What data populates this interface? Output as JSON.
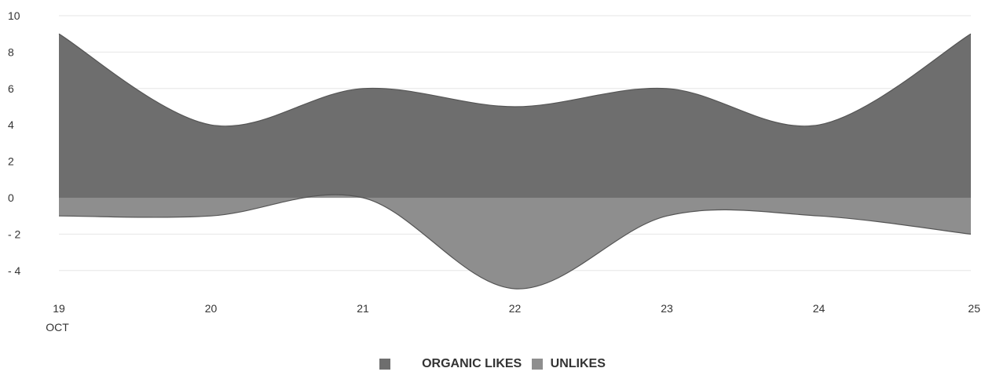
{
  "chart_data": {
    "type": "area",
    "x_unit_label": "OCT",
    "categories": [
      "19",
      "20",
      "21",
      "22",
      "23",
      "24",
      "25"
    ],
    "series": [
      {
        "name": "ORGANIC LIKES",
        "values": [
          9,
          4,
          6,
          5,
          6,
          4,
          9
        ],
        "color": "#6e6e6e"
      },
      {
        "name": "UNLIKES",
        "values": [
          -1,
          -1,
          0,
          -5,
          -1,
          -1,
          -2
        ],
        "color": "#8e8e8e"
      }
    ],
    "ylim": [
      -5,
      10
    ],
    "yticks": [
      10,
      8,
      6,
      4,
      2,
      0,
      -2,
      -4
    ],
    "ytick_labels": [
      "10",
      "8",
      "6",
      "4",
      "2",
      "0",
      "- 2",
      "- 4"
    ],
    "grid": true,
    "smooth": true,
    "legend_position": "bottom-center"
  },
  "legend": {
    "items": [
      {
        "label": "ORGANIC LIKES",
        "color": "#6e6e6e"
      },
      {
        "label": "UNLIKES",
        "color": "#8e8e8e"
      }
    ]
  }
}
